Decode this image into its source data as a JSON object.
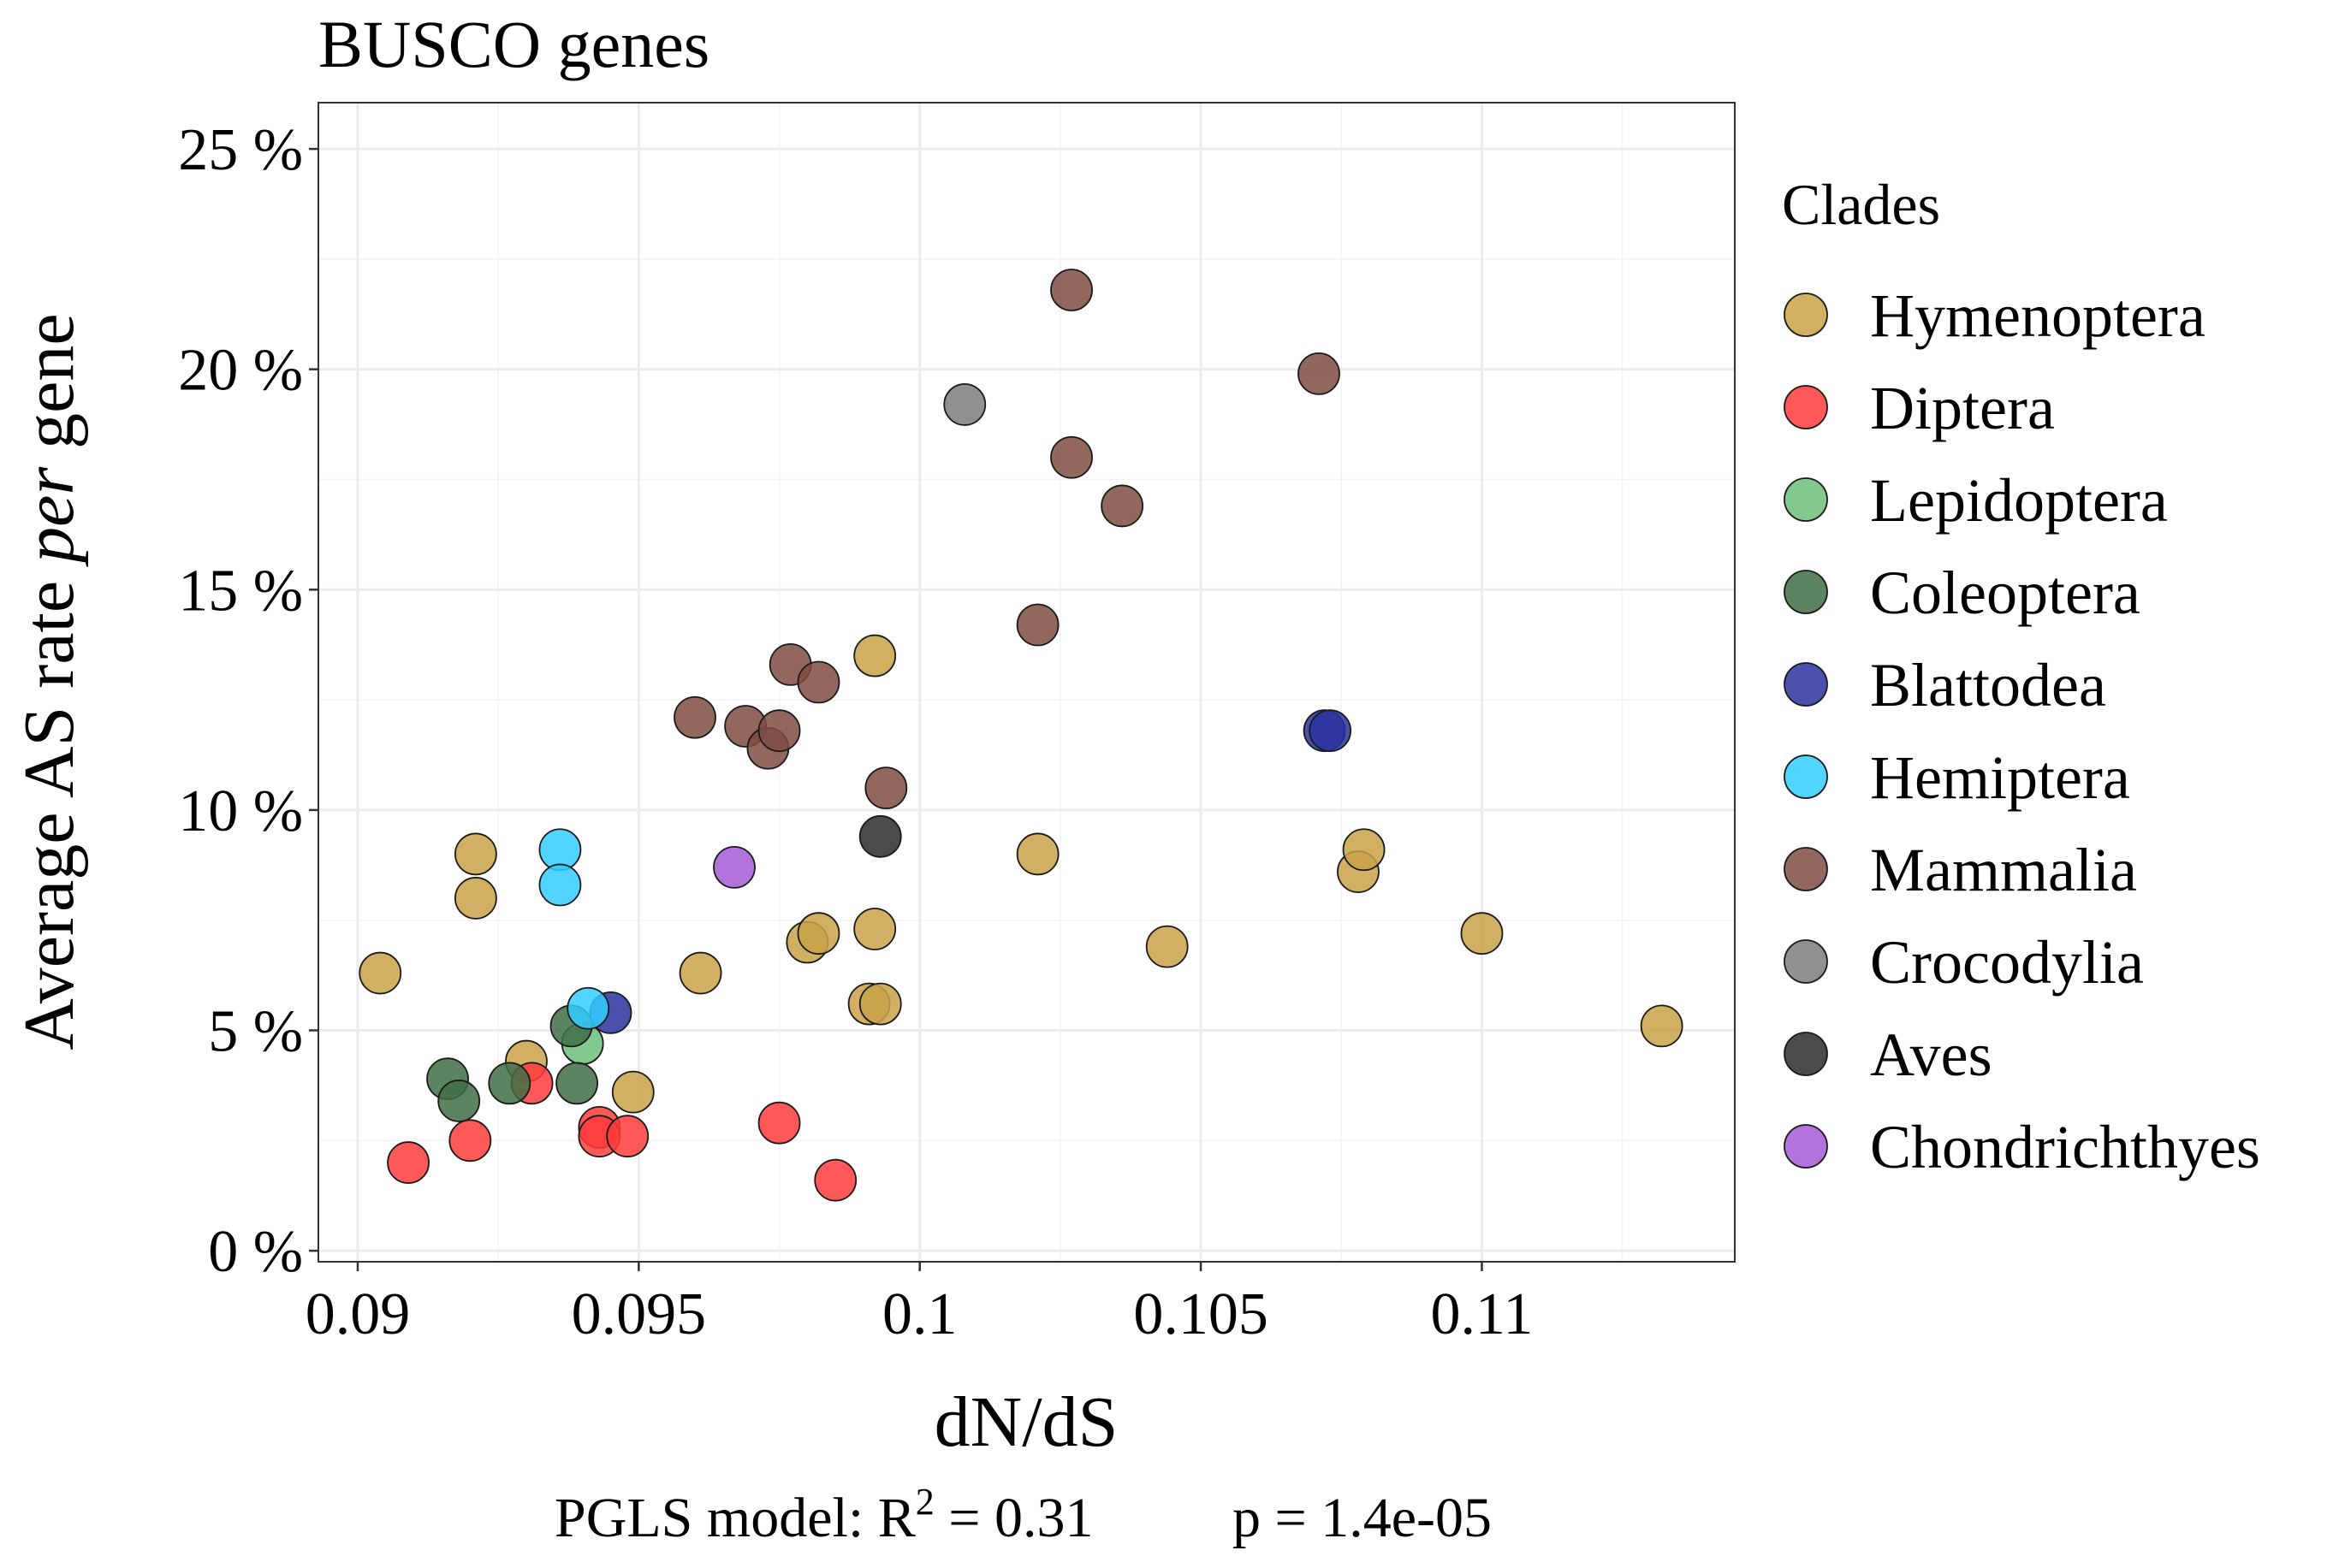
{
  "chart_data": {
    "type": "scatter",
    "title": "BUSCO genes",
    "xlabel": "dN/dS",
    "ylabel_parts": [
      "Average AS rate ",
      "per",
      " gene"
    ],
    "caption": {
      "prefix": "PGLS model: R",
      "superscript": "2",
      "r2_value": " = 0.31",
      "p_text": "p = 1.4e-05"
    },
    "xlim": [
      0.0893,
      0.1145
    ],
    "ylim": [
      -0.0025,
      0.2605
    ],
    "x_ticks": [
      {
        "value": 0.09,
        "label": "0.09"
      },
      {
        "value": 0.095,
        "label": "0.095"
      },
      {
        "value": 0.1,
        "label": "0.1"
      },
      {
        "value": 0.105,
        "label": "0.105"
      },
      {
        "value": 0.11,
        "label": "0.11"
      }
    ],
    "y_ticks": [
      {
        "value": 0,
        "label": "0 %"
      },
      {
        "value": 0.05,
        "label": "5 %"
      },
      {
        "value": 0.1,
        "label": "10 %"
      },
      {
        "value": 0.15,
        "label": "15 %"
      },
      {
        "value": 0.2,
        "label": "20 %"
      },
      {
        "value": 0.25,
        "label": "25 %"
      }
    ],
    "grid": true,
    "legend": {
      "title": "Clades",
      "placement": "right"
    },
    "series": [
      {
        "name": "Hymenoptera",
        "color": "#C9A248",
        "points": [
          [
            0.0904,
            0.063
          ],
          [
            0.0921,
            0.09
          ],
          [
            0.0921,
            0.08
          ],
          [
            0.093,
            0.043
          ],
          [
            0.0949,
            0.036
          ],
          [
            0.0961,
            0.063
          ],
          [
            0.098,
            0.07
          ],
          [
            0.0982,
            0.072
          ],
          [
            0.0991,
            0.056
          ],
          [
            0.0992,
            0.073
          ],
          [
            0.0993,
            0.056
          ],
          [
            0.0992,
            0.135
          ],
          [
            0.1021,
            0.09
          ],
          [
            0.1044,
            0.069
          ],
          [
            0.1078,
            0.086
          ],
          [
            0.1079,
            0.091
          ],
          [
            0.11,
            0.072
          ],
          [
            0.1132,
            0.051
          ]
        ]
      },
      {
        "name": "Diptera",
        "color": "#FF3B3B",
        "points": [
          [
            0.0909,
            0.02
          ],
          [
            0.092,
            0.025
          ],
          [
            0.0931,
            0.038
          ],
          [
            0.0943,
            0.028
          ],
          [
            0.0943,
            0.026
          ],
          [
            0.0948,
            0.026
          ],
          [
            0.0975,
            0.029
          ],
          [
            0.0985,
            0.016
          ]
        ]
      },
      {
        "name": "Lepidoptera",
        "color": "#6DBE7B",
        "points": [
          [
            0.094,
            0.047
          ]
        ]
      },
      {
        "name": "Coleoptera",
        "color": "#3F6E45",
        "points": [
          [
            0.0916,
            0.039
          ],
          [
            0.0918,
            0.034
          ],
          [
            0.0927,
            0.038
          ],
          [
            0.0938,
            0.051
          ],
          [
            0.0939,
            0.038
          ]
        ]
      },
      {
        "name": "Blattodea",
        "color": "#29339E",
        "points": [
          [
            0.0945,
            0.054
          ],
          [
            0.1072,
            0.118
          ],
          [
            0.1073,
            0.118
          ]
        ]
      },
      {
        "name": "Hemiptera",
        "color": "#33CCFF",
        "points": [
          [
            0.0936,
            0.091
          ],
          [
            0.0936,
            0.083
          ],
          [
            0.0941,
            0.055
          ]
        ]
      },
      {
        "name": "Mammalia",
        "color": "#7F4C42",
        "points": [
          [
            0.096,
            0.121
          ],
          [
            0.0969,
            0.119
          ],
          [
            0.0973,
            0.114
          ],
          [
            0.0975,
            0.118
          ],
          [
            0.0977,
            0.133
          ],
          [
            0.0982,
            0.129
          ],
          [
            0.0994,
            0.105
          ],
          [
            0.1021,
            0.142
          ],
          [
            0.1027,
            0.218
          ],
          [
            0.1027,
            0.18
          ],
          [
            0.1036,
            0.169
          ],
          [
            0.1071,
            0.199
          ]
        ]
      },
      {
        "name": "Crocodylia",
        "color": "#7C7C7C",
        "points": [
          [
            0.1008,
            0.192
          ]
        ]
      },
      {
        "name": "Aves",
        "color": "#2B2B2B",
        "points": [
          [
            0.0993,
            0.094
          ]
        ]
      },
      {
        "name": "Chondrichthyes",
        "color": "#A45CD6",
        "points": [
          [
            0.0967,
            0.087
          ]
        ]
      }
    ]
  }
}
